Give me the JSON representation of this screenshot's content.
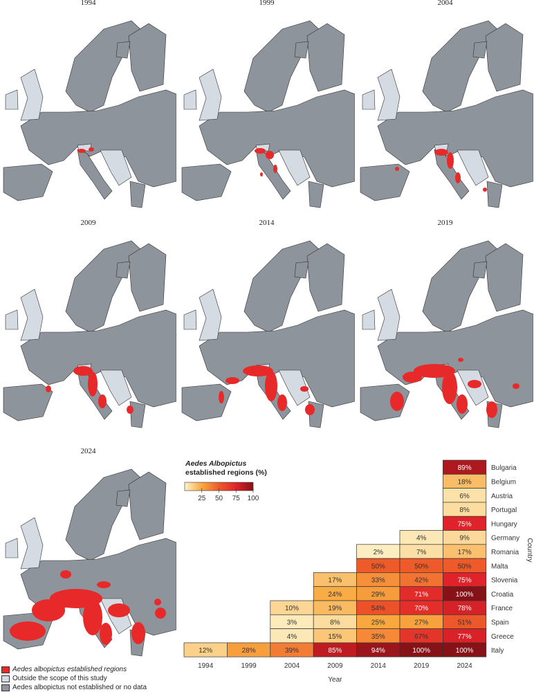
{
  "maps": {
    "years": [
      "1994",
      "1999",
      "2004",
      "2009",
      "2014",
      "2019",
      "2024"
    ],
    "colors": {
      "established": "#e8292a",
      "outside_scope": "#d5dbe3",
      "not_established": "#8e949b",
      "border": "#2f2f2f"
    }
  },
  "map_legend": {
    "established": "Aedes albopictus established regions",
    "outside_scope": "Outside the scope of this study",
    "not_established": "Aedes albopictus not established or no data"
  },
  "chart_data": {
    "type": "heatmap",
    "legend_title_italic": "Aedes Albopictus",
    "legend_title_rest": "established regions (%)",
    "legend_ticks": [
      "25",
      "50",
      "75",
      "100"
    ],
    "legend_range": [
      0,
      100
    ],
    "legend_placement": "top-left",
    "color_scale": [
      "#fdf4cc",
      "#f9a840",
      "#ee5a2a",
      "#e0232a",
      "#851217"
    ],
    "xlabel": "Year",
    "ylabel": "Country",
    "x": [
      "1994",
      "1999",
      "2004",
      "2009",
      "2014",
      "2019",
      "2024"
    ],
    "y": [
      "Bulgaria",
      "Belgium",
      "Austria",
      "Portugal",
      "Hungary",
      "Germany",
      "Romania",
      "Malta",
      "Slovenia",
      "Croatia",
      "France",
      "Spain",
      "Greece",
      "Italy"
    ],
    "values": {
      "Bulgaria": [
        null,
        null,
        null,
        null,
        null,
        null,
        89
      ],
      "Belgium": [
        null,
        null,
        null,
        null,
        null,
        null,
        18
      ],
      "Austria": [
        null,
        null,
        null,
        null,
        null,
        null,
        6
      ],
      "Portugal": [
        null,
        null,
        null,
        null,
        null,
        null,
        8
      ],
      "Hungary": [
        null,
        null,
        null,
        null,
        null,
        null,
        75
      ],
      "Germany": [
        null,
        null,
        null,
        null,
        null,
        4,
        9
      ],
      "Romania": [
        null,
        null,
        null,
        null,
        2,
        7,
        17
      ],
      "Malta": [
        null,
        null,
        null,
        null,
        50,
        50,
        50
      ],
      "Slovenia": [
        null,
        null,
        null,
        17,
        33,
        42,
        75
      ],
      "Croatia": [
        null,
        null,
        null,
        24,
        29,
        71,
        100
      ],
      "France": [
        null,
        null,
        10,
        19,
        54,
        70,
        78
      ],
      "Spain": [
        null,
        null,
        3,
        8,
        25,
        27,
        51
      ],
      "Greece": [
        null,
        null,
        4,
        15,
        35,
        67,
        77
      ],
      "Italy": [
        12,
        28,
        39,
        85,
        94,
        100,
        100
      ]
    }
  }
}
